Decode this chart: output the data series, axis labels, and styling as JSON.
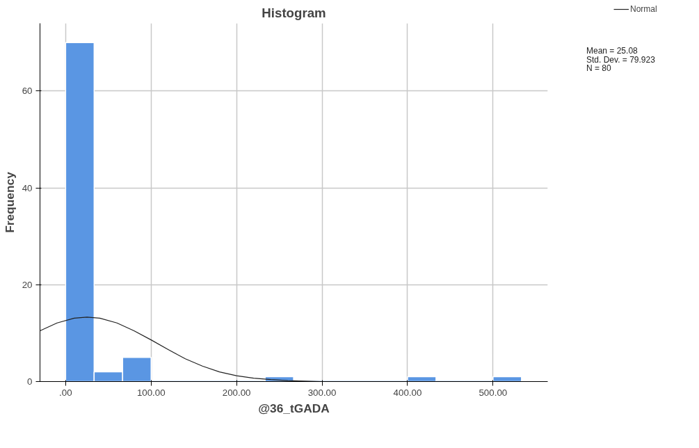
{
  "chart_data": {
    "type": "histogram",
    "title": "Histogram",
    "xlabel": "@36_tGADA",
    "ylabel": "Frequency",
    "bins": [
      0,
      33.33,
      66.67,
      100,
      133.33,
      166.67,
      200,
      233.33,
      266.67,
      300,
      333.33,
      366.67,
      400,
      433.33,
      466.67,
      500,
      533.33
    ],
    "values": [
      70,
      2,
      5,
      0,
      0,
      0,
      0,
      1,
      0,
      0,
      0,
      0,
      1,
      0,
      0,
      1
    ],
    "color": "#5a96e3",
    "series": [
      {
        "name": "Normal",
        "type": "line",
        "color": "#222222",
        "x": [
          -30,
          -10,
          10,
          25,
          40,
          60,
          80,
          100,
          120,
          140,
          160,
          180,
          200,
          220,
          240,
          260,
          280,
          300,
          340,
          400,
          560
        ],
        "values": [
          10.5,
          12.1,
          13.1,
          13.3,
          13.1,
          12.1,
          10.5,
          8.6,
          6.6,
          4.7,
          3.2,
          2.0,
          1.2,
          0.7,
          0.4,
          0.2,
          0.1,
          0,
          0,
          0,
          0
        ]
      }
    ],
    "xlim": [
      -30,
      564
    ],
    "ylim": [
      0,
      74
    ],
    "xticks": [
      {
        "value": 0,
        "label": ".00"
      },
      {
        "value": 100,
        "label": "100.00"
      },
      {
        "value": 200,
        "label": "200.00"
      },
      {
        "value": 300,
        "label": "300.00"
      },
      {
        "value": 400,
        "label": "400.00"
      },
      {
        "value": 500,
        "label": "500.00"
      }
    ],
    "yticks": [
      0,
      20,
      40,
      60
    ],
    "grid": true,
    "legend": "top right",
    "annotations": [
      "Mean = 25.08",
      "Std. Dev. = 79.923",
      "N = 80"
    ]
  }
}
